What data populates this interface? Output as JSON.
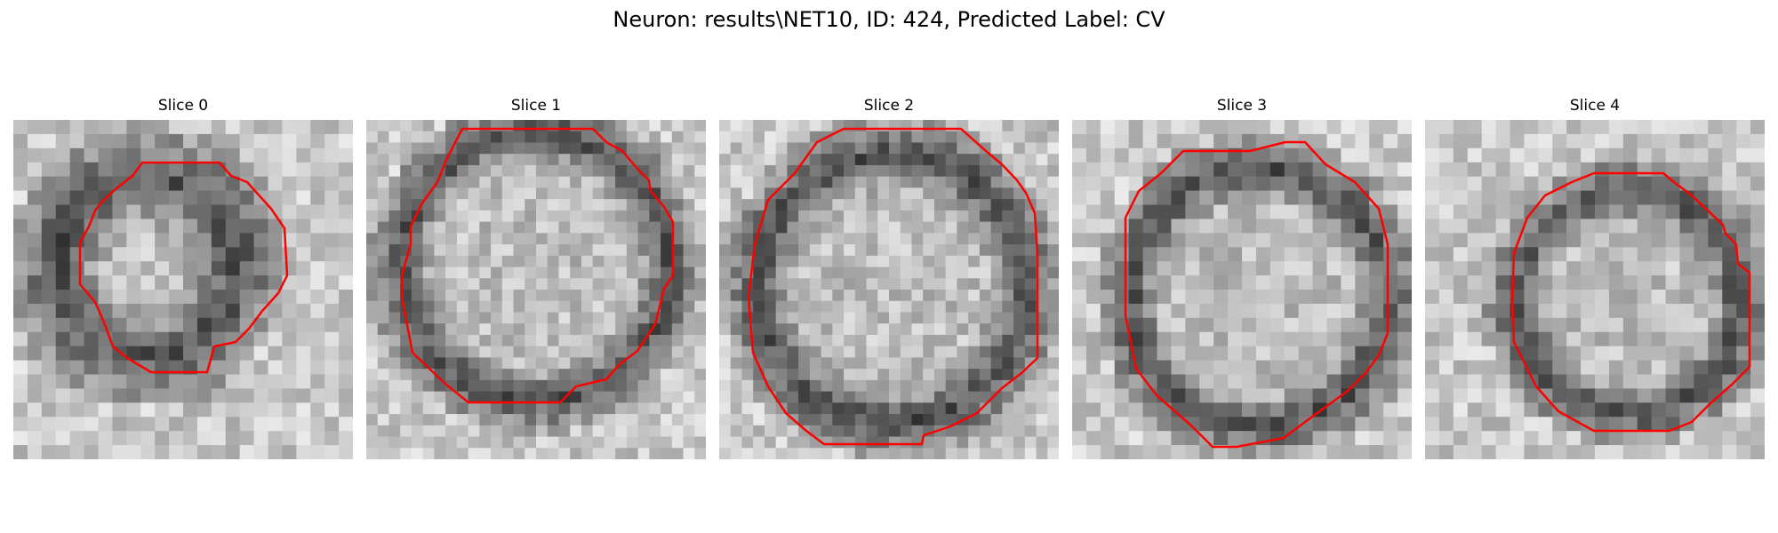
{
  "figure": {
    "title": "Neuron: results\\NET10, ID: 424, Predicted Label: CV"
  },
  "slices": [
    {
      "label": "Slice 0"
    },
    {
      "label": "Slice 1"
    },
    {
      "label": "Slice 2"
    },
    {
      "label": "Slice 3"
    },
    {
      "label": "Slice 4"
    }
  ],
  "colors": {
    "contour": "#ff0000",
    "background": "#ffffff"
  }
}
